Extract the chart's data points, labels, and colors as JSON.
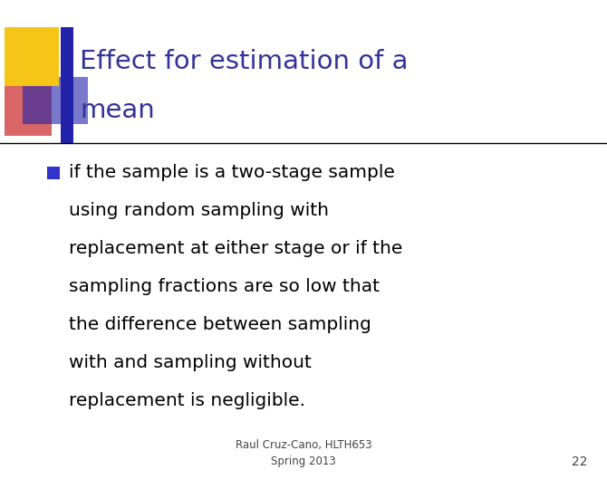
{
  "title_line1": "Effect for estimation of a",
  "title_line2": "mean",
  "title_color": "#333399",
  "bullet_color": "#000000",
  "bullet_marker_color": "#3333cc",
  "footer_line1": "Raul Cruz-Cano, HLTH653",
  "footer_line2": "Spring 2013",
  "footer_number": "22",
  "bg_color": "#ffffff",
  "separator_color": "#000000",
  "deco_yellow": "#f5c518",
  "deco_red": "#cc3333",
  "deco_blue": "#2222aa",
  "bullet_lines": [
    "if the sample is a two-stage sample",
    "using random sampling with",
    "replacement at either stage or if the",
    "sampling fractions are so low that",
    "the difference between sampling",
    "with and sampling without",
    "replacement is negligible."
  ]
}
